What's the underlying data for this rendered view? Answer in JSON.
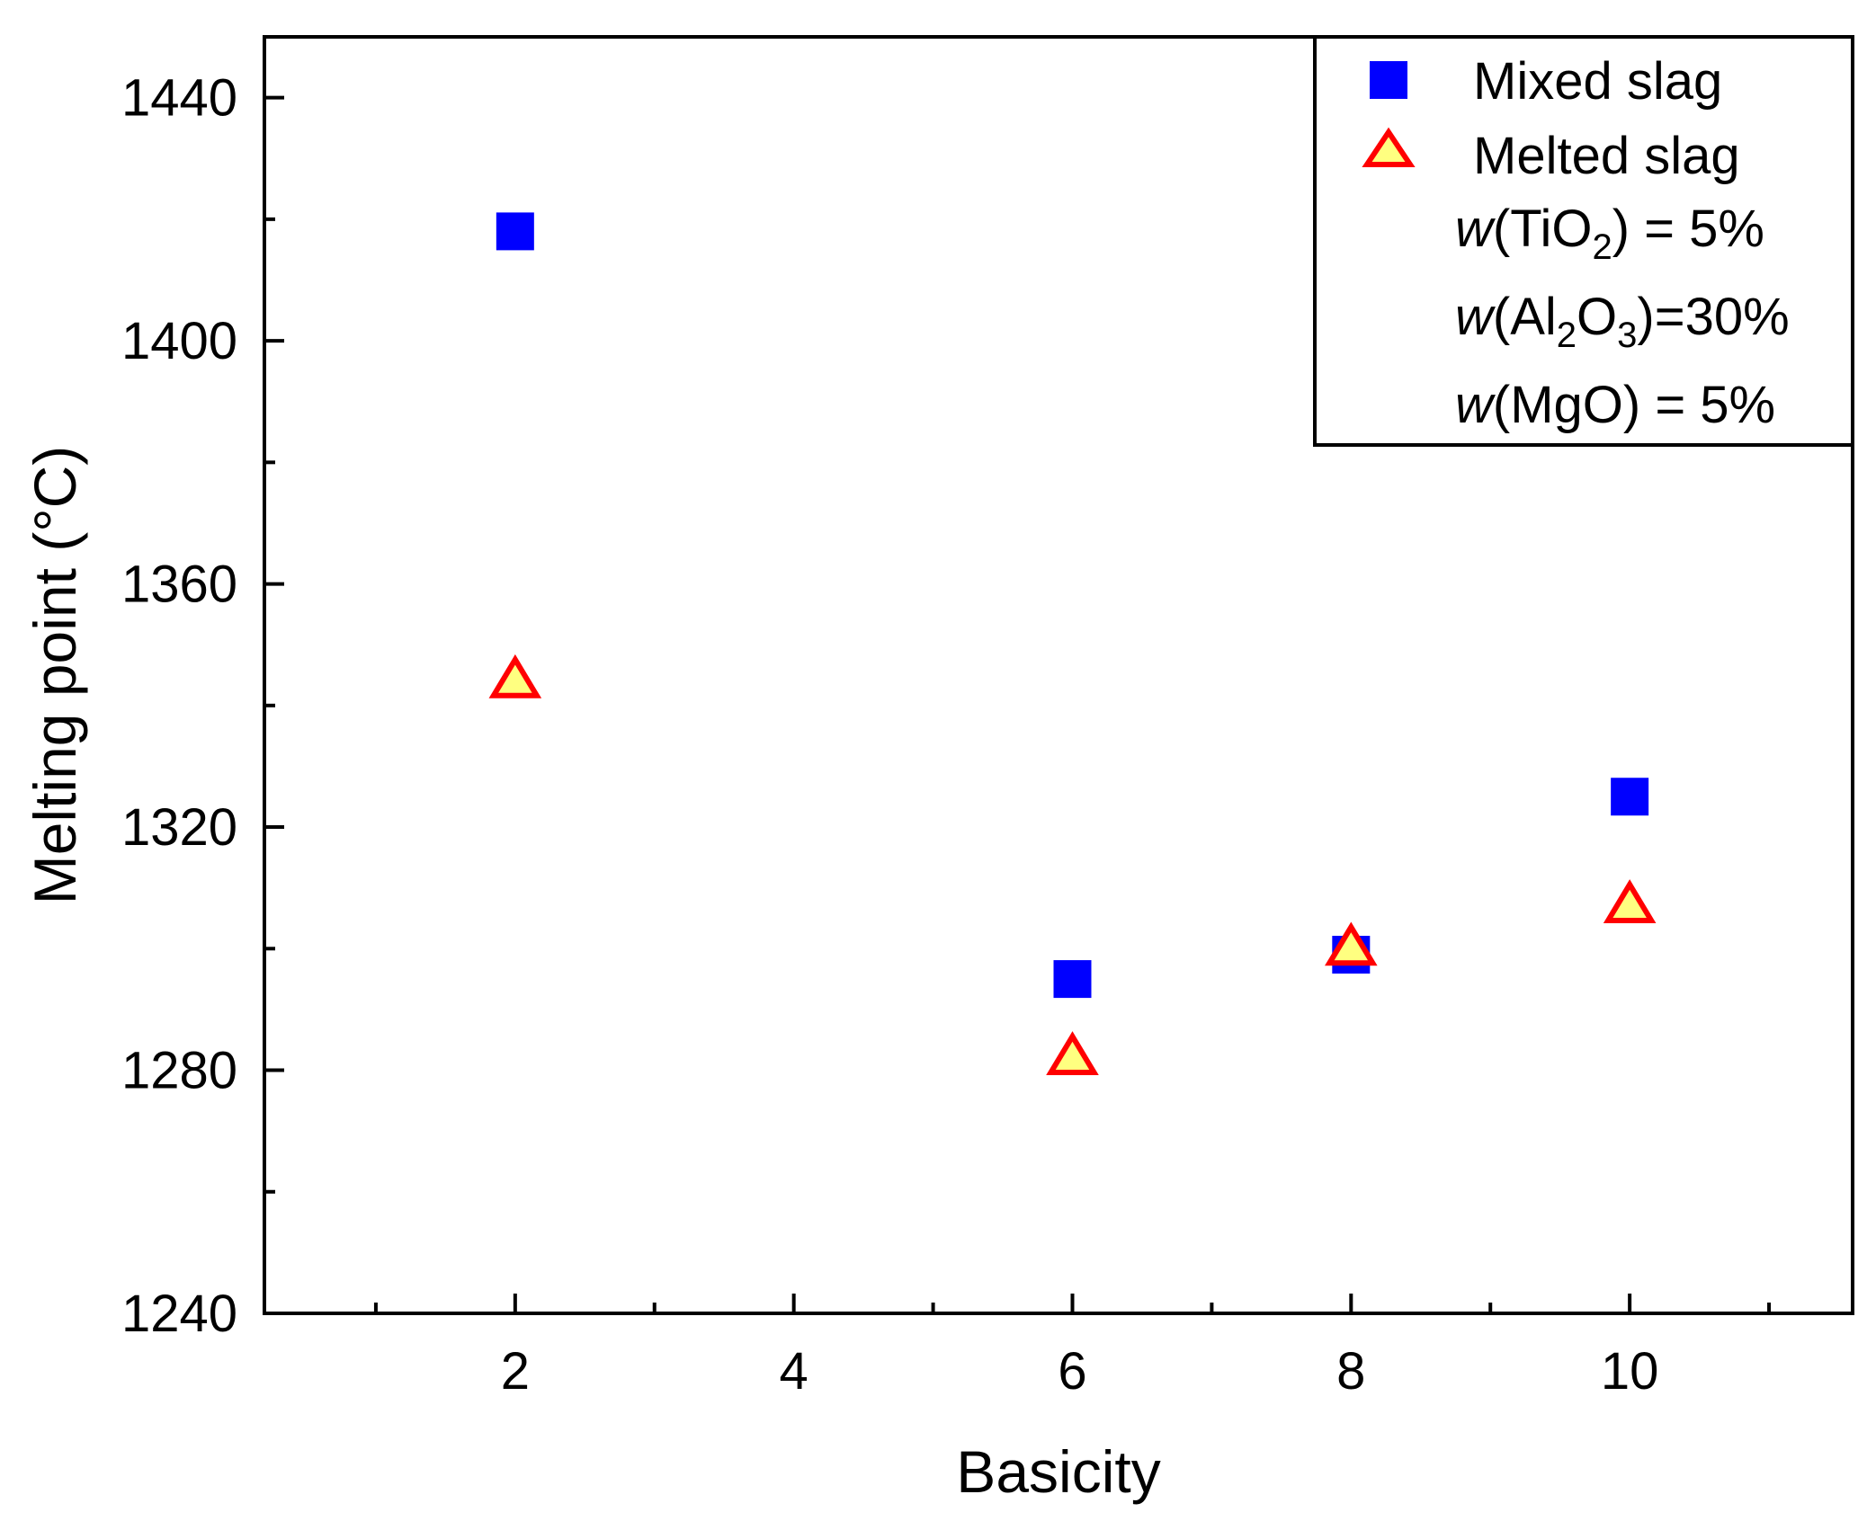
{
  "chart_data": {
    "type": "scatter",
    "title": "",
    "xlabel": "Basicity",
    "ylabel": "Melting point (°C)",
    "xlim": [
      0.2,
      11.6
    ],
    "ylim": [
      1240,
      1450
    ],
    "xticks": [
      2,
      4,
      6,
      8,
      10
    ],
    "yticks": [
      1240,
      1280,
      1320,
      1360,
      1400,
      1440
    ],
    "grid": false,
    "legend_position": "top-right",
    "series": [
      {
        "name": "Mixed slag",
        "marker": "square",
        "fill": "#0000ff",
        "stroke": "#0000ff",
        "x": [
          2,
          6,
          8,
          10
        ],
        "y": [
          1418,
          1295,
          1299,
          1325
        ]
      },
      {
        "name": "Melted slag",
        "marker": "triangle",
        "fill": "#ffff80",
        "stroke": "#ff0000",
        "x": [
          2,
          6,
          8,
          10
        ],
        "y": [
          1344,
          1282,
          1300,
          1307
        ]
      }
    ],
    "annotations": {
      "tio2": {
        "prefix": "w",
        "open": "(TiO",
        "sub": "2",
        "close": ")  =  5%"
      },
      "al2o3": {
        "prefix": "w",
        "open": "(Al",
        "sub1": "2",
        "mid": "O",
        "sub2": "3",
        "close": ")=30%"
      },
      "mgo": {
        "prefix": "w",
        "text": "(MgO) =  5%"
      }
    }
  }
}
